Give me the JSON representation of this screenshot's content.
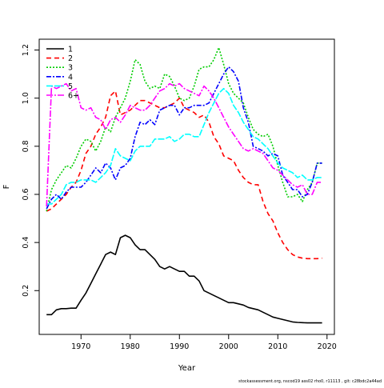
{
  "chart_data": {
    "type": "line",
    "title": "",
    "xlabel": "Year",
    "ylabel": "F",
    "xlim": [
      1961.5,
      2021.5
    ],
    "ylim": [
      0.018,
      1.245
    ],
    "x_ticks": [
      1970,
      1980,
      1990,
      2000,
      2010,
      2020
    ],
    "y_ticks": [
      0.2,
      0.4,
      0.6,
      0.8,
      1.0,
      1.2
    ],
    "x_tick_labels": [
      "1970",
      "1980",
      "1990",
      "2000",
      "2010",
      "2020"
    ],
    "y_tick_labels": [
      "0.2",
      "0.4",
      "0.6",
      "0.8",
      "1.0",
      "1.2"
    ],
    "grid": false,
    "legend_position": "top-left",
    "footer": "stockassessment.org,  nscod19  ass02  rho0,  r11113 ,  git: c28bdc2a44ad",
    "x": [
      1963,
      1964,
      1965,
      1966,
      1967,
      1968,
      1969,
      1970,
      1971,
      1972,
      1973,
      1974,
      1975,
      1976,
      1977,
      1978,
      1979,
      1980,
      1981,
      1982,
      1983,
      1984,
      1985,
      1986,
      1987,
      1988,
      1989,
      1990,
      1991,
      1992,
      1993,
      1994,
      1995,
      1996,
      1997,
      1998,
      1999,
      2000,
      2001,
      2002,
      2003,
      2004,
      2005,
      2006,
      2007,
      2008,
      2009,
      2010,
      2011,
      2012,
      2013,
      2014,
      2015,
      2016,
      2017,
      2018,
      2019
    ],
    "series": [
      {
        "name": "1",
        "color": "#000000",
        "dash": "solid",
        "values": [
          0.1,
          0.1,
          0.12,
          0.125,
          0.125,
          0.127,
          0.127,
          0.16,
          0.19,
          0.23,
          0.27,
          0.31,
          0.35,
          0.36,
          0.35,
          0.42,
          0.43,
          0.42,
          0.39,
          0.37,
          0.37,
          0.35,
          0.33,
          0.3,
          0.29,
          0.3,
          0.29,
          0.28,
          0.28,
          0.26,
          0.26,
          0.24,
          0.2,
          0.19,
          0.18,
          0.17,
          0.16,
          0.15,
          0.15,
          0.145,
          0.14,
          0.13,
          0.125,
          0.12,
          0.11,
          0.1,
          0.09,
          0.085,
          0.08,
          0.075,
          0.07,
          0.068,
          0.067,
          0.066,
          0.066,
          0.066,
          0.066
        ]
      },
      {
        "name": "2",
        "color": "#ff0000",
        "dash": "6,4",
        "values": [
          0.53,
          0.54,
          0.56,
          0.58,
          0.6,
          0.63,
          0.65,
          0.7,
          0.77,
          0.8,
          0.85,
          0.88,
          0.92,
          1.01,
          1.03,
          0.93,
          0.94,
          0.95,
          0.97,
          0.99,
          0.99,
          0.98,
          0.97,
          0.96,
          0.96,
          0.97,
          0.98,
          1.0,
          0.96,
          0.95,
          0.94,
          0.92,
          0.93,
          0.9,
          0.84,
          0.81,
          0.76,
          0.75,
          0.74,
          0.7,
          0.67,
          0.65,
          0.64,
          0.64,
          0.57,
          0.52,
          0.49,
          0.44,
          0.4,
          0.37,
          0.35,
          0.34,
          0.335,
          0.333,
          0.333,
          0.333,
          0.335
        ]
      },
      {
        "name": "3",
        "color": "#00cd00",
        "dash": "2,2",
        "values": [
          0.53,
          0.62,
          0.66,
          0.69,
          0.72,
          0.71,
          0.75,
          0.8,
          0.83,
          0.82,
          0.78,
          0.82,
          0.88,
          0.86,
          0.92,
          0.96,
          1.0,
          1.07,
          1.16,
          1.14,
          1.07,
          1.04,
          1.05,
          1.04,
          1.1,
          1.09,
          1.05,
          1.0,
          0.99,
          1.0,
          1.05,
          1.12,
          1.13,
          1.13,
          1.16,
          1.21,
          1.14,
          1.06,
          1.02,
          1.0,
          0.98,
          0.92,
          0.87,
          0.85,
          0.84,
          0.85,
          0.8,
          0.72,
          0.65,
          0.59,
          0.59,
          0.6,
          0.57,
          0.62,
          0.65,
          0.73,
          0.73
        ]
      },
      {
        "name": "4",
        "color": "#0000ff",
        "dash": "6,2,2,2",
        "values": [
          0.54,
          0.58,
          0.6,
          0.58,
          0.61,
          0.63,
          0.63,
          0.63,
          0.65,
          0.68,
          0.71,
          0.69,
          0.73,
          0.71,
          0.66,
          0.71,
          0.72,
          0.75,
          0.84,
          0.9,
          0.89,
          0.91,
          0.89,
          0.95,
          0.96,
          0.97,
          0.97,
          0.93,
          0.96,
          0.96,
          0.97,
          0.97,
          0.97,
          0.98,
          1.02,
          1.06,
          1.1,
          1.13,
          1.11,
          1.07,
          0.96,
          0.9,
          0.8,
          0.79,
          0.78,
          0.76,
          0.77,
          0.76,
          0.68,
          0.65,
          0.62,
          0.62,
          0.59,
          0.6,
          0.65,
          0.73,
          0.73
        ]
      },
      {
        "name": "5",
        "color": "#00ffff",
        "dash": "8,2",
        "values": [
          0.56,
          0.56,
          0.58,
          0.6,
          0.64,
          0.65,
          0.65,
          0.66,
          0.66,
          0.66,
          0.65,
          0.67,
          0.69,
          0.72,
          0.79,
          0.76,
          0.75,
          0.74,
          0.78,
          0.8,
          0.8,
          0.8,
          0.83,
          0.83,
          0.83,
          0.84,
          0.82,
          0.83,
          0.85,
          0.85,
          0.84,
          0.84,
          0.89,
          0.94,
          0.98,
          1.02,
          1.04,
          1.02,
          0.97,
          0.94,
          0.9,
          0.87,
          0.84,
          0.83,
          0.81,
          0.79,
          0.76,
          0.73,
          0.71,
          0.7,
          0.69,
          0.67,
          0.68,
          0.66,
          0.66,
          0.67,
          0.67
        ]
      },
      {
        "name": "6+",
        "color": "#ff00ff",
        "dash": "8,2,2,2",
        "values": [
          0.55,
          1.05,
          1.04,
          1.05,
          1.06,
          1.03,
          1.04,
          0.96,
          0.95,
          0.96,
          0.92,
          0.91,
          0.87,
          0.91,
          0.92,
          0.9,
          0.93,
          0.97,
          0.96,
          0.95,
          0.95,
          0.97,
          1.0,
          1.03,
          1.04,
          1.06,
          1.05,
          1.06,
          1.04,
          1.03,
          1.02,
          1.01,
          1.05,
          1.03,
          1.0,
          0.96,
          0.92,
          0.88,
          0.85,
          0.82,
          0.79,
          0.78,
          0.79,
          0.78,
          0.77,
          0.74,
          0.71,
          0.7,
          0.68,
          0.66,
          0.64,
          0.63,
          0.64,
          0.6,
          0.6,
          0.65,
          0.65
        ]
      }
    ]
  }
}
